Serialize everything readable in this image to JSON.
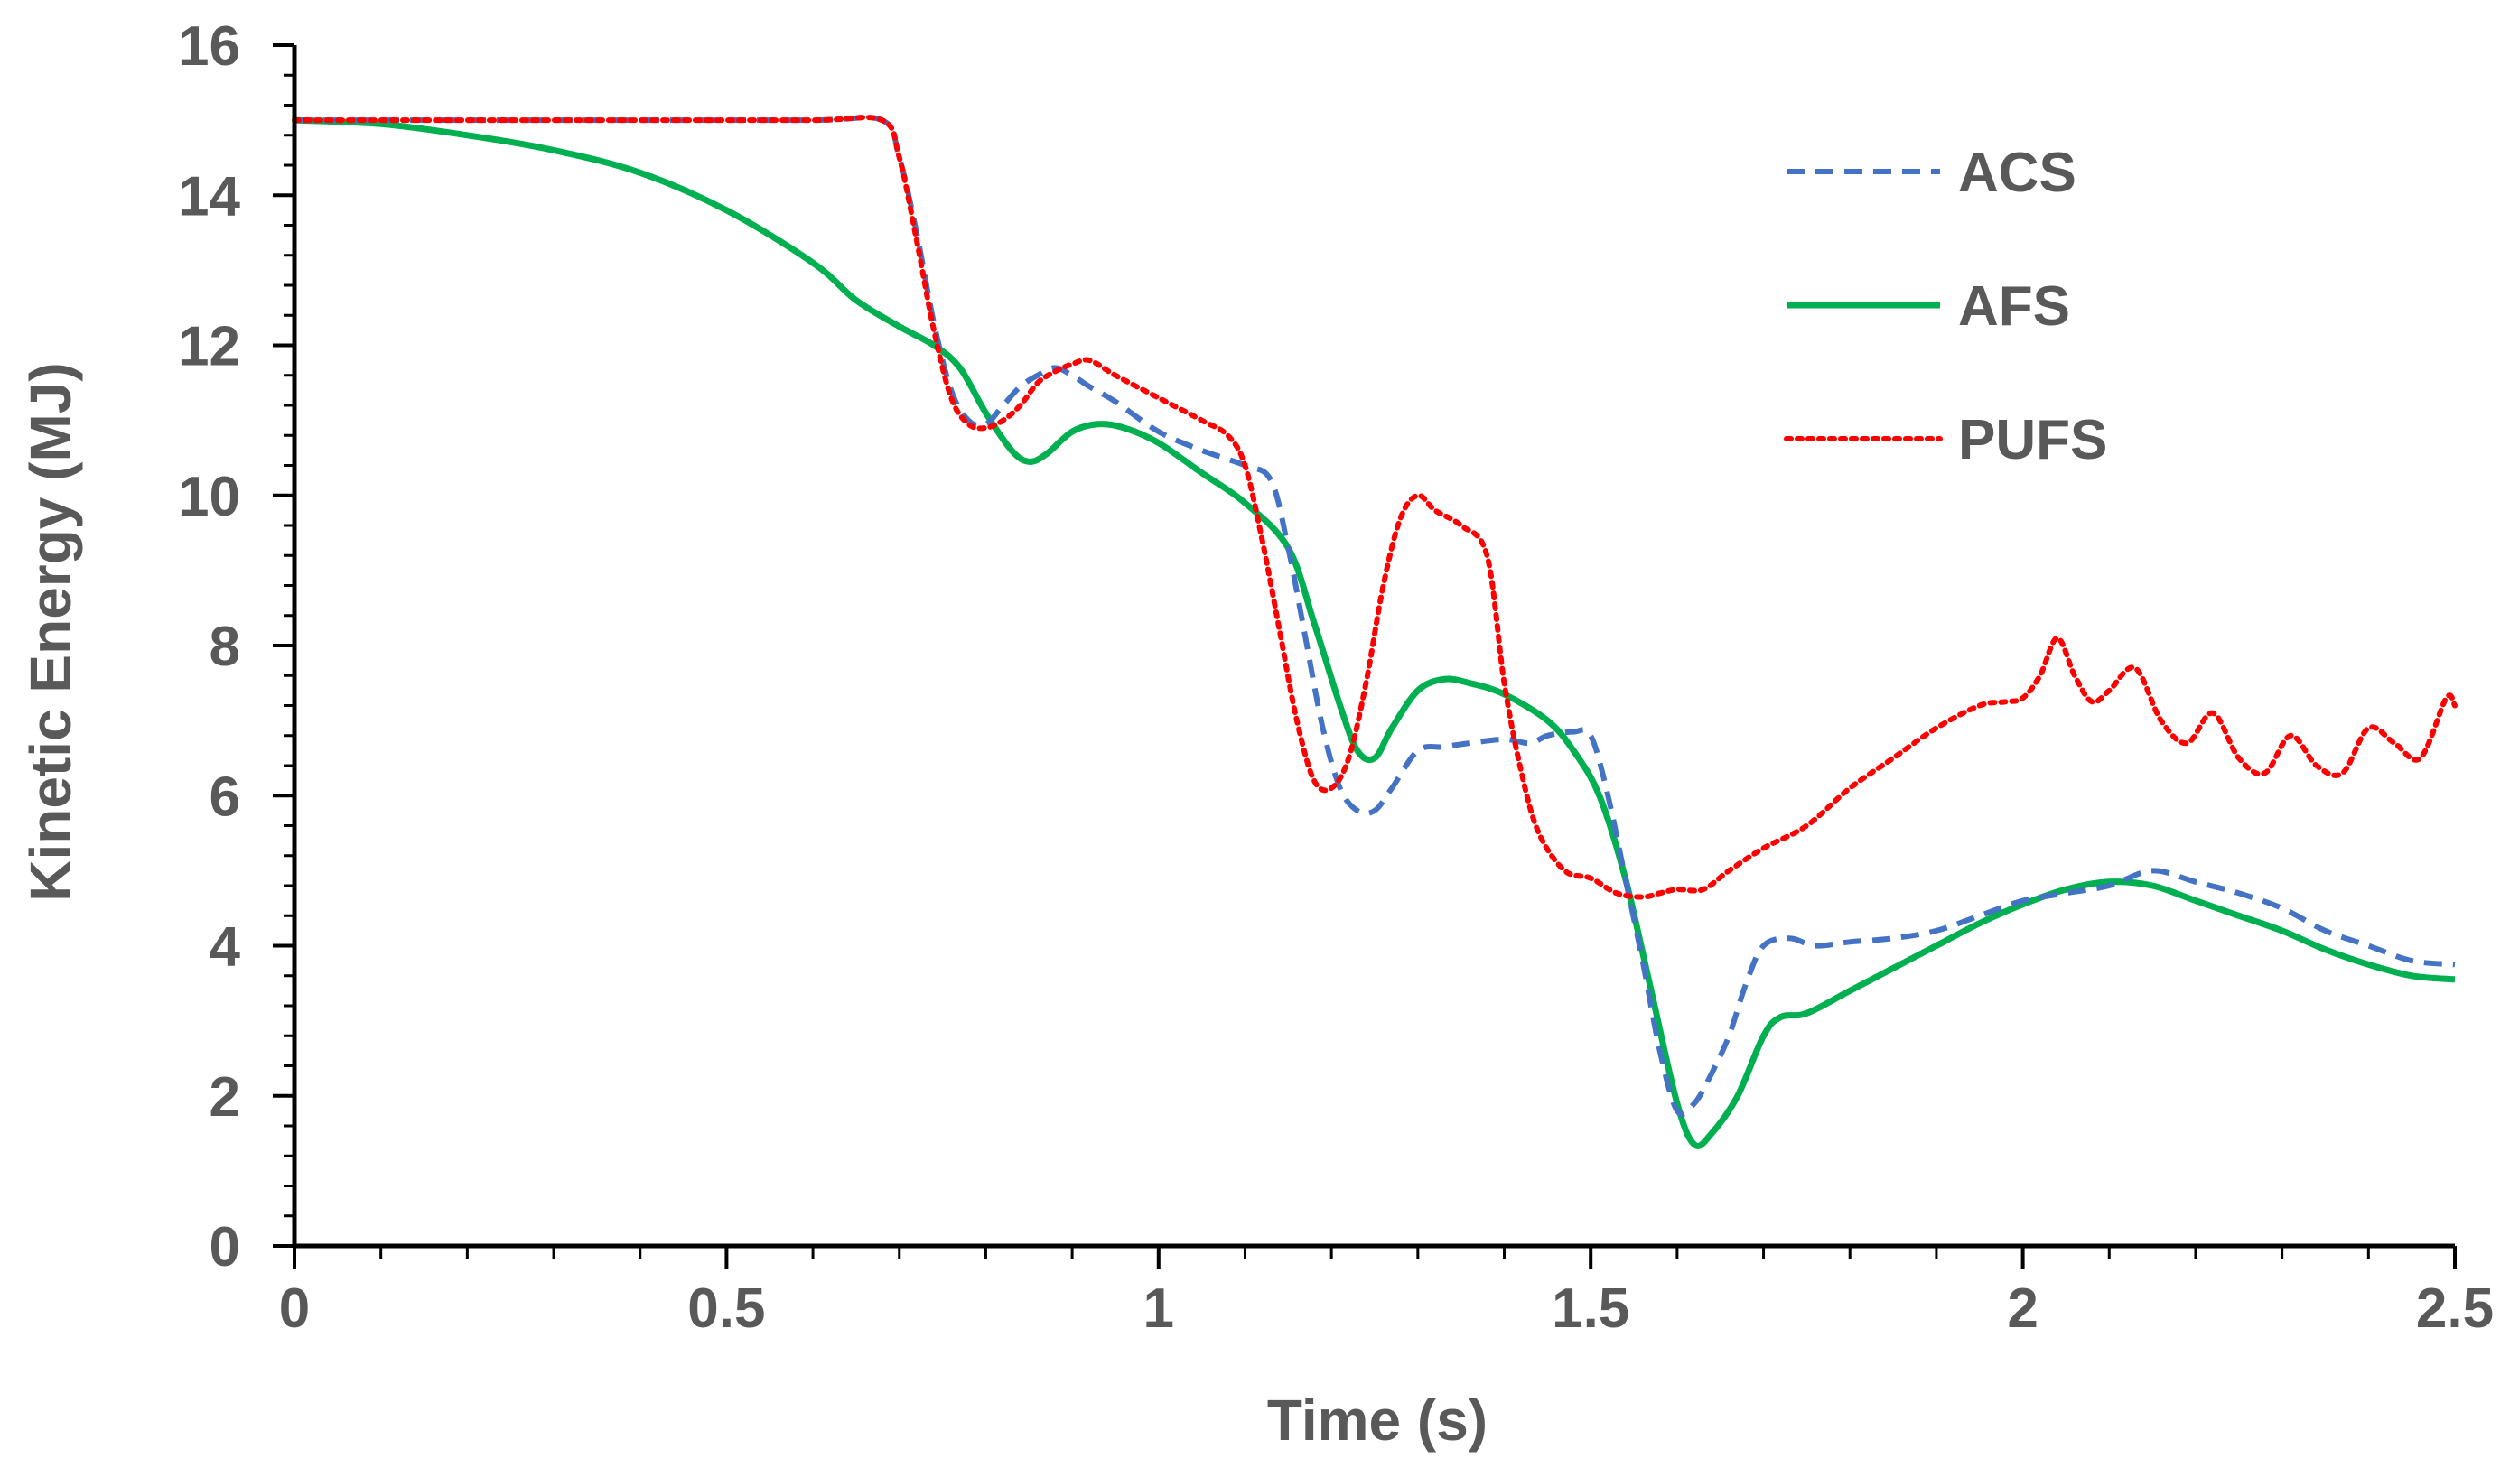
{
  "chart_data": {
    "type": "line",
    "title": "",
    "xlabel": "Time (s)",
    "ylabel": "Kinetic Energy (MJ)",
    "xlim": [
      0,
      2.5
    ],
    "ylim": [
      0,
      16
    ],
    "x_ticks": [
      0,
      0.5,
      1,
      1.5,
      2,
      2.5
    ],
    "x_tick_labels": [
      "0",
      "0.5",
      "1",
      "1.5",
      "2",
      "2.5"
    ],
    "y_ticks": [
      0,
      2,
      4,
      6,
      8,
      10,
      12,
      14,
      16
    ],
    "y_tick_labels": [
      "0",
      "2",
      "4",
      "6",
      "8",
      "10",
      "12",
      "14",
      "16"
    ],
    "x_minor_step": 0.1,
    "y_minor_step": 0.4,
    "grid": false,
    "legend_position": "top-right",
    "series": [
      {
        "name": "ACS",
        "color": "#4472C4",
        "style": "dashed",
        "x": [
          0,
          0.2,
          0.4,
          0.6,
          0.68,
          0.7,
          0.72,
          0.74,
          0.76,
          0.78,
          0.8,
          0.82,
          0.84,
          0.86,
          0.88,
          0.9,
          0.92,
          0.95,
          1.0,
          1.05,
          1.1,
          1.13,
          1.15,
          1.17,
          1.19,
          1.21,
          1.23,
          1.25,
          1.27,
          1.3,
          1.33,
          1.36,
          1.4,
          1.43,
          1.45,
          1.48,
          1.5,
          1.52,
          1.54,
          1.56,
          1.58,
          1.6,
          1.62,
          1.64,
          1.66,
          1.68,
          1.7,
          1.73,
          1.76,
          1.8,
          1.85,
          1.9,
          1.95,
          2.0,
          2.05,
          2.1,
          2.15,
          2.2,
          2.25,
          2.3,
          2.35,
          2.4,
          2.45,
          2.5
        ],
        "values": [
          15.0,
          15.0,
          15.0,
          15.0,
          15.0,
          14.5,
          13.5,
          12.3,
          11.4,
          11.0,
          10.95,
          11.2,
          11.45,
          11.6,
          11.7,
          11.6,
          11.45,
          11.25,
          10.85,
          10.6,
          10.4,
          10.2,
          9.3,
          8.1,
          6.9,
          6.1,
          5.8,
          5.8,
          6.1,
          6.6,
          6.65,
          6.7,
          6.75,
          6.7,
          6.8,
          6.85,
          6.8,
          6.0,
          4.9,
          3.8,
          2.6,
          1.8,
          1.9,
          2.3,
          2.8,
          3.5,
          4.0,
          4.1,
          4.0,
          4.05,
          4.1,
          4.2,
          4.4,
          4.6,
          4.7,
          4.8,
          5.0,
          4.85,
          4.7,
          4.5,
          4.2,
          4.0,
          3.8,
          3.75
        ]
      },
      {
        "name": "AFS",
        "color": "#00B050",
        "style": "solid",
        "x": [
          0,
          0.1,
          0.2,
          0.3,
          0.4,
          0.5,
          0.6,
          0.65,
          0.7,
          0.74,
          0.77,
          0.8,
          0.83,
          0.85,
          0.87,
          0.9,
          0.93,
          0.96,
          1.0,
          1.05,
          1.1,
          1.15,
          1.18,
          1.21,
          1.23,
          1.25,
          1.27,
          1.3,
          1.33,
          1.36,
          1.4,
          1.45,
          1.48,
          1.51,
          1.54,
          1.57,
          1.6,
          1.62,
          1.64,
          1.67,
          1.7,
          1.72,
          1.75,
          1.8,
          1.85,
          1.9,
          1.95,
          2.0,
          2.05,
          2.1,
          2.15,
          2.2,
          2.25,
          2.3,
          2.35,
          2.4,
          2.45,
          2.5
        ],
        "values": [
          15.0,
          14.95,
          14.8,
          14.6,
          14.3,
          13.8,
          13.1,
          12.6,
          12.25,
          12.0,
          11.7,
          11.1,
          10.6,
          10.45,
          10.55,
          10.85,
          10.95,
          10.9,
          10.7,
          10.3,
          9.9,
          9.3,
          8.3,
          7.2,
          6.6,
          6.5,
          6.9,
          7.4,
          7.55,
          7.5,
          7.35,
          7.0,
          6.6,
          6.0,
          4.9,
          3.4,
          1.9,
          1.35,
          1.5,
          2.0,
          2.8,
          3.05,
          3.1,
          3.4,
          3.7,
          4.0,
          4.3,
          4.55,
          4.75,
          4.85,
          4.8,
          4.6,
          4.4,
          4.2,
          3.95,
          3.75,
          3.6,
          3.55
        ]
      },
      {
        "name": "PUFS",
        "color": "#FF0000",
        "style": "dotted",
        "x": [
          0,
          0.2,
          0.4,
          0.6,
          0.68,
          0.7,
          0.72,
          0.74,
          0.76,
          0.78,
          0.8,
          0.82,
          0.84,
          0.86,
          0.88,
          0.9,
          0.92,
          0.95,
          1.0,
          1.05,
          1.08,
          1.1,
          1.12,
          1.14,
          1.16,
          1.18,
          1.2,
          1.22,
          1.24,
          1.26,
          1.28,
          1.3,
          1.32,
          1.35,
          1.38,
          1.4,
          1.42,
          1.44,
          1.47,
          1.5,
          1.53,
          1.56,
          1.58,
          1.6,
          1.63,
          1.66,
          1.7,
          1.75,
          1.8,
          1.85,
          1.9,
          1.95,
          1.98,
          2.0,
          2.02,
          2.04,
          2.06,
          2.08,
          2.1,
          2.13,
          2.16,
          2.19,
          2.22,
          2.25,
          2.28,
          2.31,
          2.34,
          2.37,
          2.4,
          2.43,
          2.46,
          2.49,
          2.5
        ],
        "values": [
          15.0,
          15.0,
          15.0,
          15.0,
          15.0,
          14.5,
          13.4,
          12.2,
          11.3,
          10.95,
          10.9,
          11.0,
          11.2,
          11.5,
          11.65,
          11.75,
          11.8,
          11.6,
          11.3,
          11.0,
          10.8,
          10.4,
          9.4,
          8.2,
          7.0,
          6.2,
          6.1,
          6.5,
          7.5,
          8.8,
          9.7,
          10.0,
          9.8,
          9.6,
          9.2,
          7.5,
          6.3,
          5.5,
          5.0,
          4.9,
          4.7,
          4.65,
          4.7,
          4.75,
          4.75,
          5.0,
          5.3,
          5.6,
          6.1,
          6.5,
          6.9,
          7.2,
          7.25,
          7.3,
          7.6,
          8.1,
          7.6,
          7.25,
          7.4,
          7.7,
          7.0,
          6.7,
          7.1,
          6.5,
          6.3,
          6.8,
          6.4,
          6.3,
          6.9,
          6.7,
          6.5,
          7.3,
          7.2
        ]
      }
    ]
  }
}
